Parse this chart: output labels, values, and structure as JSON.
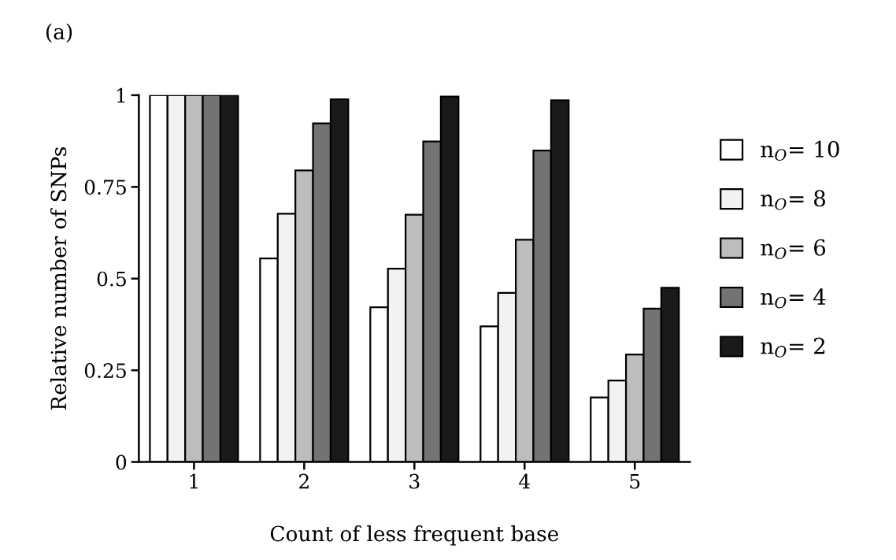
{
  "chart_data": {
    "type": "bar",
    "categories": [
      "1",
      "2",
      "3",
      "4",
      "5"
    ],
    "series": [
      {
        "name": "n$_{O}$= 10",
        "color": "#ffffff",
        "values": [
          1,
          0.555,
          0.422,
          0.37,
          0.176
        ]
      },
      {
        "name": "n$_{O}$= 8",
        "color": "#f2f2f2",
        "values": [
          1,
          0.677,
          0.527,
          0.461,
          0.222
        ]
      },
      {
        "name": "n$_{O}$= 6",
        "color": "#bdbdbd",
        "values": [
          1,
          0.795,
          0.674,
          0.606,
          0.293
        ]
      },
      {
        "name": "n$_{O}$= 4",
        "color": "#737373",
        "values": [
          1,
          0.923,
          0.874,
          0.849,
          0.418
        ]
      },
      {
        "name": "n$_{O}$= 2",
        "color": "#1a1a1a",
        "values": [
          1,
          0.989,
          0.996,
          0.986,
          0.475
        ]
      }
    ],
    "xlabel": "Count of less frequent base",
    "ylabel": "Relative number of SNPs",
    "ylim": [
      0,
      1
    ],
    "yticks": [
      0,
      0.25,
      0.5,
      0.75,
      1
    ],
    "annotations": [
      "(a)"
    ],
    "legend": "right",
    "grid": false
  }
}
